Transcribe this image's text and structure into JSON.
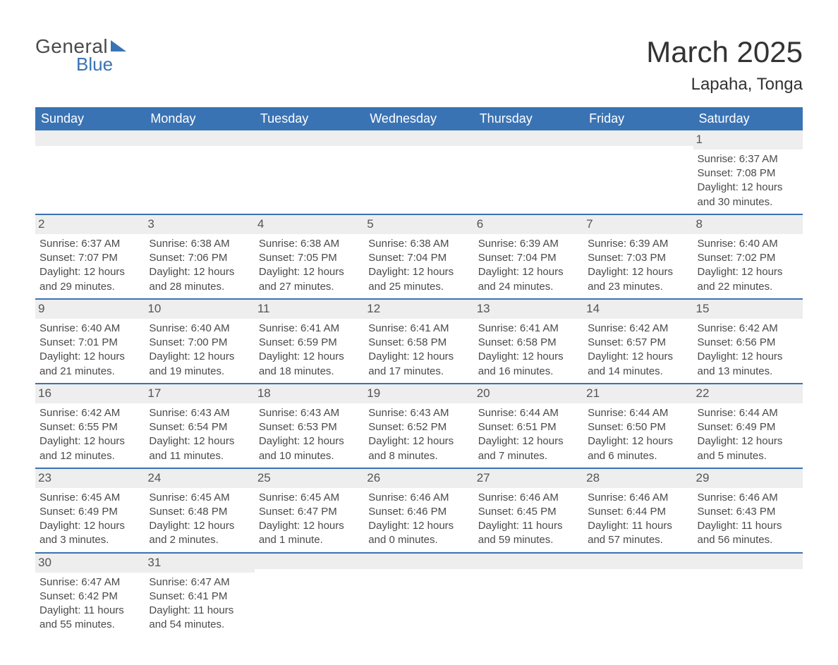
{
  "logo": {
    "text_general": "General",
    "text_blue": "Blue",
    "accent_color": "#3a73b4"
  },
  "title": "March 2025",
  "location": "Lapaha, Tonga",
  "colors": {
    "header_bg": "#3a73b4",
    "header_text": "#ffffff",
    "daynum_bg": "#eeeeee",
    "row_border": "#3a73b4",
    "body_text": "#4a4a4a",
    "title_text": "#333333",
    "page_bg": "#ffffff"
  },
  "typography": {
    "title_fontsize_pt": 32,
    "location_fontsize_pt": 18,
    "header_fontsize_pt": 14,
    "cell_fontsize_pt": 11
  },
  "weekdays": [
    "Sunday",
    "Monday",
    "Tuesday",
    "Wednesday",
    "Thursday",
    "Friday",
    "Saturday"
  ],
  "weeks": [
    [
      null,
      null,
      null,
      null,
      null,
      null,
      {
        "n": "1",
        "sunrise": "Sunrise: 6:37 AM",
        "sunset": "Sunset: 7:08 PM",
        "daylight": "Daylight: 12 hours and 30 minutes."
      }
    ],
    [
      {
        "n": "2",
        "sunrise": "Sunrise: 6:37 AM",
        "sunset": "Sunset: 7:07 PM",
        "daylight": "Daylight: 12 hours and 29 minutes."
      },
      {
        "n": "3",
        "sunrise": "Sunrise: 6:38 AM",
        "sunset": "Sunset: 7:06 PM",
        "daylight": "Daylight: 12 hours and 28 minutes."
      },
      {
        "n": "4",
        "sunrise": "Sunrise: 6:38 AM",
        "sunset": "Sunset: 7:05 PM",
        "daylight": "Daylight: 12 hours and 27 minutes."
      },
      {
        "n": "5",
        "sunrise": "Sunrise: 6:38 AM",
        "sunset": "Sunset: 7:04 PM",
        "daylight": "Daylight: 12 hours and 25 minutes."
      },
      {
        "n": "6",
        "sunrise": "Sunrise: 6:39 AM",
        "sunset": "Sunset: 7:04 PM",
        "daylight": "Daylight: 12 hours and 24 minutes."
      },
      {
        "n": "7",
        "sunrise": "Sunrise: 6:39 AM",
        "sunset": "Sunset: 7:03 PM",
        "daylight": "Daylight: 12 hours and 23 minutes."
      },
      {
        "n": "8",
        "sunrise": "Sunrise: 6:40 AM",
        "sunset": "Sunset: 7:02 PM",
        "daylight": "Daylight: 12 hours and 22 minutes."
      }
    ],
    [
      {
        "n": "9",
        "sunrise": "Sunrise: 6:40 AM",
        "sunset": "Sunset: 7:01 PM",
        "daylight": "Daylight: 12 hours and 21 minutes."
      },
      {
        "n": "10",
        "sunrise": "Sunrise: 6:40 AM",
        "sunset": "Sunset: 7:00 PM",
        "daylight": "Daylight: 12 hours and 19 minutes."
      },
      {
        "n": "11",
        "sunrise": "Sunrise: 6:41 AM",
        "sunset": "Sunset: 6:59 PM",
        "daylight": "Daylight: 12 hours and 18 minutes."
      },
      {
        "n": "12",
        "sunrise": "Sunrise: 6:41 AM",
        "sunset": "Sunset: 6:58 PM",
        "daylight": "Daylight: 12 hours and 17 minutes."
      },
      {
        "n": "13",
        "sunrise": "Sunrise: 6:41 AM",
        "sunset": "Sunset: 6:58 PM",
        "daylight": "Daylight: 12 hours and 16 minutes."
      },
      {
        "n": "14",
        "sunrise": "Sunrise: 6:42 AM",
        "sunset": "Sunset: 6:57 PM",
        "daylight": "Daylight: 12 hours and 14 minutes."
      },
      {
        "n": "15",
        "sunrise": "Sunrise: 6:42 AM",
        "sunset": "Sunset: 6:56 PM",
        "daylight": "Daylight: 12 hours and 13 minutes."
      }
    ],
    [
      {
        "n": "16",
        "sunrise": "Sunrise: 6:42 AM",
        "sunset": "Sunset: 6:55 PM",
        "daylight": "Daylight: 12 hours and 12 minutes."
      },
      {
        "n": "17",
        "sunrise": "Sunrise: 6:43 AM",
        "sunset": "Sunset: 6:54 PM",
        "daylight": "Daylight: 12 hours and 11 minutes."
      },
      {
        "n": "18",
        "sunrise": "Sunrise: 6:43 AM",
        "sunset": "Sunset: 6:53 PM",
        "daylight": "Daylight: 12 hours and 10 minutes."
      },
      {
        "n": "19",
        "sunrise": "Sunrise: 6:43 AM",
        "sunset": "Sunset: 6:52 PM",
        "daylight": "Daylight: 12 hours and 8 minutes."
      },
      {
        "n": "20",
        "sunrise": "Sunrise: 6:44 AM",
        "sunset": "Sunset: 6:51 PM",
        "daylight": "Daylight: 12 hours and 7 minutes."
      },
      {
        "n": "21",
        "sunrise": "Sunrise: 6:44 AM",
        "sunset": "Sunset: 6:50 PM",
        "daylight": "Daylight: 12 hours and 6 minutes."
      },
      {
        "n": "22",
        "sunrise": "Sunrise: 6:44 AM",
        "sunset": "Sunset: 6:49 PM",
        "daylight": "Daylight: 12 hours and 5 minutes."
      }
    ],
    [
      {
        "n": "23",
        "sunrise": "Sunrise: 6:45 AM",
        "sunset": "Sunset: 6:49 PM",
        "daylight": "Daylight: 12 hours and 3 minutes."
      },
      {
        "n": "24",
        "sunrise": "Sunrise: 6:45 AM",
        "sunset": "Sunset: 6:48 PM",
        "daylight": "Daylight: 12 hours and 2 minutes."
      },
      {
        "n": "25",
        "sunrise": "Sunrise: 6:45 AM",
        "sunset": "Sunset: 6:47 PM",
        "daylight": "Daylight: 12 hours and 1 minute."
      },
      {
        "n": "26",
        "sunrise": "Sunrise: 6:46 AM",
        "sunset": "Sunset: 6:46 PM",
        "daylight": "Daylight: 12 hours and 0 minutes."
      },
      {
        "n": "27",
        "sunrise": "Sunrise: 6:46 AM",
        "sunset": "Sunset: 6:45 PM",
        "daylight": "Daylight: 11 hours and 59 minutes."
      },
      {
        "n": "28",
        "sunrise": "Sunrise: 6:46 AM",
        "sunset": "Sunset: 6:44 PM",
        "daylight": "Daylight: 11 hours and 57 minutes."
      },
      {
        "n": "29",
        "sunrise": "Sunrise: 6:46 AM",
        "sunset": "Sunset: 6:43 PM",
        "daylight": "Daylight: 11 hours and 56 minutes."
      }
    ],
    [
      {
        "n": "30",
        "sunrise": "Sunrise: 6:47 AM",
        "sunset": "Sunset: 6:42 PM",
        "daylight": "Daylight: 11 hours and 55 minutes."
      },
      {
        "n": "31",
        "sunrise": "Sunrise: 6:47 AM",
        "sunset": "Sunset: 6:41 PM",
        "daylight": "Daylight: 11 hours and 54 minutes."
      },
      null,
      null,
      null,
      null,
      null
    ]
  ]
}
